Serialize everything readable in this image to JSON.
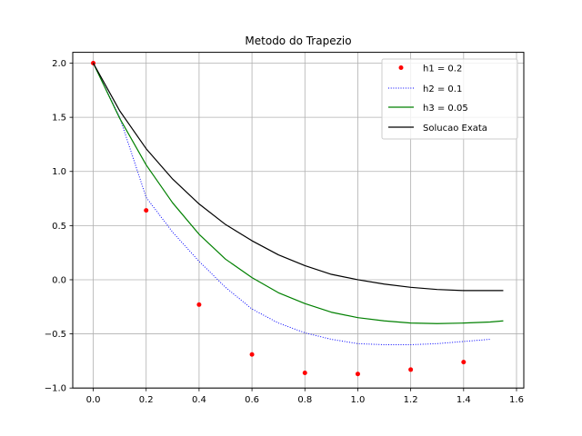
{
  "chart_data": {
    "type": "line",
    "title": "Metodo do Trapezio",
    "xlabel": "",
    "ylabel": "",
    "xlim": [
      -0.0775,
      1.6275
    ],
    "ylim": [
      -1.0,
      2.1
    ],
    "xticks": [
      0.0,
      0.2,
      0.4,
      0.6,
      0.8,
      1.0,
      1.2,
      1.4,
      1.6
    ],
    "xtick_labels": [
      "0.0",
      "0.2",
      "0.4",
      "0.6",
      "0.8",
      "1.0",
      "1.2",
      "1.4",
      "1.6"
    ],
    "yticks": [
      -1.0,
      -0.5,
      0.0,
      0.5,
      1.0,
      1.5,
      2.0
    ],
    "ytick_labels": [
      "−1.0",
      "−0.5",
      "0.0",
      "0.5",
      "1.0",
      "1.5",
      "2.0"
    ],
    "grid": true,
    "legend_position": "top-right",
    "series": [
      {
        "name": "h1 = 0.2",
        "style": "markers",
        "color": "#ff0000",
        "x": [
          0.0,
          0.2,
          0.4,
          0.6,
          0.8,
          1.0,
          1.2,
          1.4
        ],
        "y": [
          2.0,
          0.64,
          -0.23,
          -0.69,
          -0.86,
          -0.87,
          -0.83,
          -0.76
        ]
      },
      {
        "name": "h2 = 0.1",
        "style": "dotted",
        "color": "#0000ff",
        "x": [
          0.0,
          0.1,
          0.2,
          0.3,
          0.4,
          0.5,
          0.6,
          0.7,
          0.8,
          0.9,
          1.0,
          1.1,
          1.2,
          1.3,
          1.4,
          1.5
        ],
        "y": [
          2.0,
          1.5,
          0.76,
          0.44,
          0.17,
          -0.07,
          -0.27,
          -0.4,
          -0.49,
          -0.55,
          -0.59,
          -0.6,
          -0.6,
          -0.59,
          -0.57,
          -0.55
        ]
      },
      {
        "name": "h3 = 0.05",
        "style": "solid",
        "color": "#008000",
        "x": [
          0.0,
          0.1,
          0.2,
          0.3,
          0.4,
          0.5,
          0.6,
          0.7,
          0.8,
          0.9,
          1.0,
          1.1,
          1.2,
          1.3,
          1.4,
          1.5,
          1.55
        ],
        "y": [
          2.0,
          1.49,
          1.06,
          0.71,
          0.42,
          0.19,
          0.02,
          -0.12,
          -0.22,
          -0.3,
          -0.35,
          -0.38,
          -0.4,
          -0.405,
          -0.4,
          -0.39,
          -0.38
        ]
      },
      {
        "name": "Solucao Exata",
        "style": "solid",
        "color": "#000000",
        "x": [
          0.0,
          0.1,
          0.2,
          0.3,
          0.4,
          0.5,
          0.6,
          0.7,
          0.8,
          0.9,
          1.0,
          1.1,
          1.2,
          1.3,
          1.4,
          1.5,
          1.55
        ],
        "y": [
          2.0,
          1.56,
          1.21,
          0.93,
          0.7,
          0.51,
          0.36,
          0.23,
          0.13,
          0.05,
          0.0,
          -0.04,
          -0.07,
          -0.09,
          -0.1,
          -0.1,
          -0.1
        ]
      }
    ]
  }
}
